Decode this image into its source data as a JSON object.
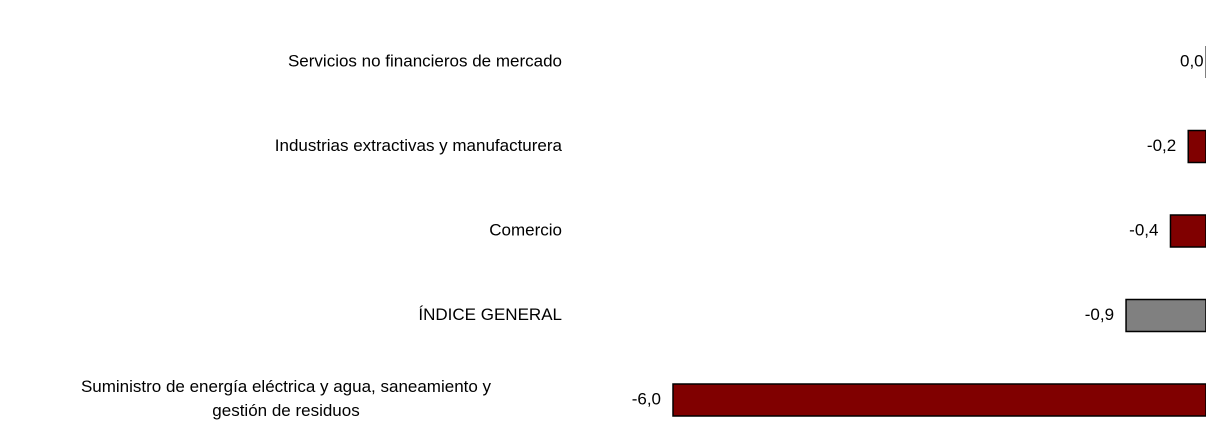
{
  "chart_data": {
    "type": "bar",
    "orientation": "horizontal",
    "categories": [
      "Servicios no financieros de mercado",
      "Industrias extractivas y manufacturera",
      "Comercio",
      "ÍNDICE GENERAL",
      "Suministro de energía eléctrica y agua, saneamiento y\ngestión de residuos"
    ],
    "values": [
      0.0,
      -0.2,
      -0.4,
      -0.9,
      -6.0
    ],
    "value_labels": [
      "0,0",
      "-0,2",
      "-0,4",
      "-0,9",
      "-6,0"
    ],
    "colors": [
      "#800000",
      "#800000",
      "#800000",
      "#808080",
      "#800000"
    ]
  }
}
